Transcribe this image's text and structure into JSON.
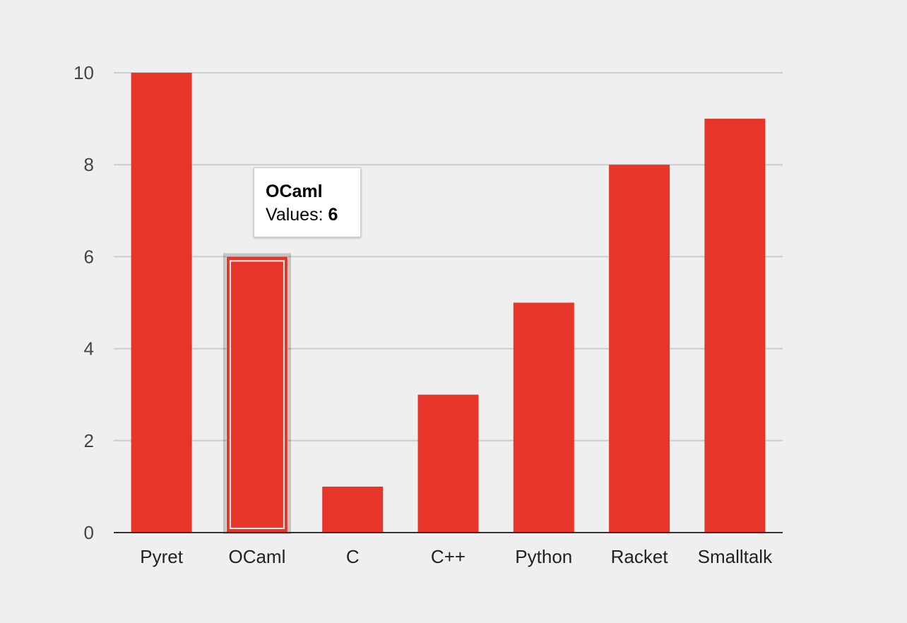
{
  "chart_data": {
    "type": "bar",
    "categories": [
      "Pyret",
      "OCaml",
      "C",
      "C++",
      "Python",
      "Racket",
      "Smalltalk"
    ],
    "values": [
      10,
      6,
      1,
      3,
      5,
      8,
      9
    ],
    "ylim": [
      0,
      10
    ],
    "yticks": [
      0,
      2,
      4,
      6,
      8,
      10
    ],
    "grid": true,
    "bar_color": "#e8352a",
    "highlighted_index": 1
  },
  "tooltip": {
    "title": "OCaml",
    "value_label": "Values:",
    "value": "6"
  }
}
